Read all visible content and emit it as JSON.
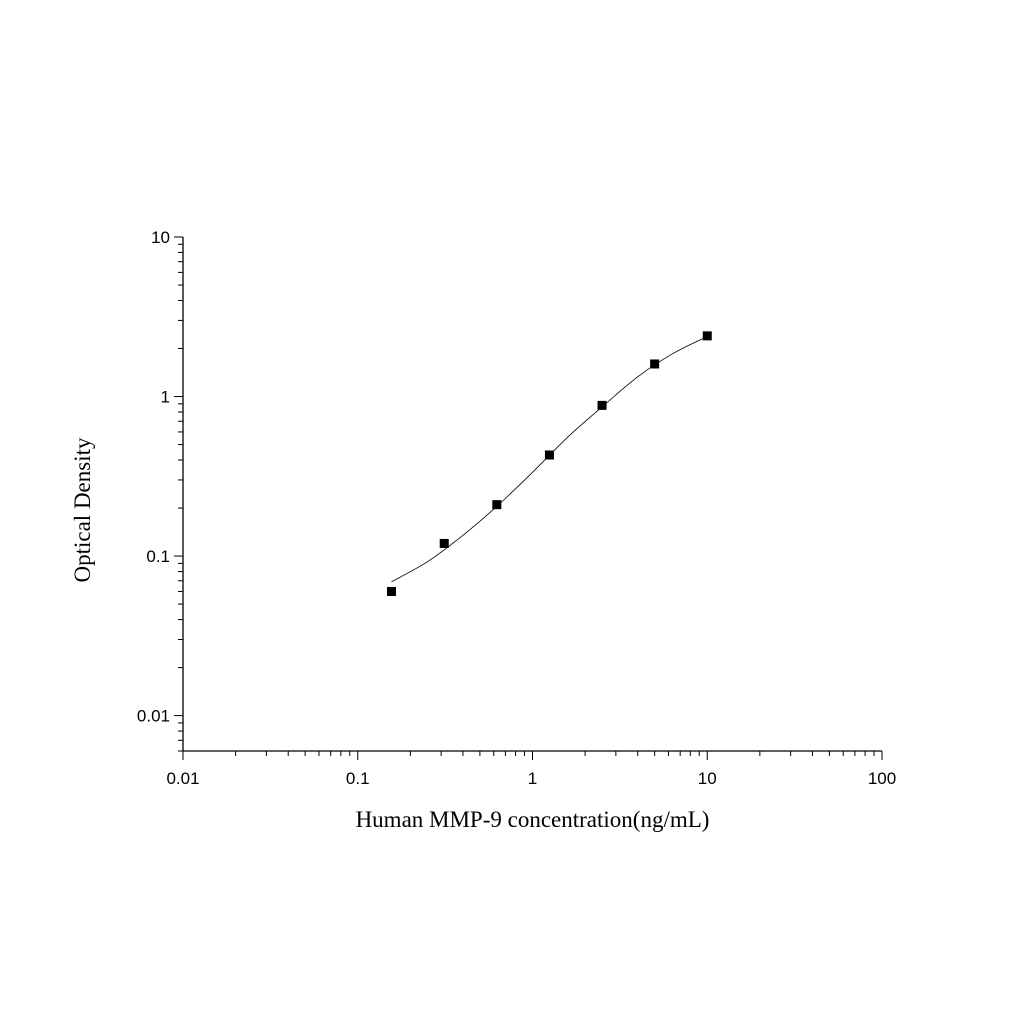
{
  "chart_data": {
    "type": "scatter",
    "title": "",
    "xlabel": "Human MMP-9 concentration(ng/mL)",
    "ylabel": "Optical Density",
    "xscale": "log",
    "yscale": "log",
    "xlim": [
      0.01,
      100
    ],
    "ylim": [
      0.006,
      10
    ],
    "x_ticks": [
      {
        "value": 0.01,
        "label": "0.01"
      },
      {
        "value": 0.1,
        "label": "0.1"
      },
      {
        "value": 1,
        "label": "1"
      },
      {
        "value": 10,
        "label": "10"
      },
      {
        "value": 100,
        "label": "100"
      }
    ],
    "y_ticks": [
      {
        "value": 0.01,
        "label": "0.01"
      },
      {
        "value": 0.1,
        "label": "0.1"
      },
      {
        "value": 1,
        "label": "1"
      },
      {
        "value": 10,
        "label": "10"
      }
    ],
    "grid": false,
    "legend": "none",
    "series": [
      {
        "marker": "square",
        "color": "#000000",
        "points": [
          {
            "x": 0.156,
            "y": 0.06
          },
          {
            "x": 0.3125,
            "y": 0.12
          },
          {
            "x": 0.625,
            "y": 0.21
          },
          {
            "x": 1.25,
            "y": 0.43
          },
          {
            "x": 2.5,
            "y": 0.88
          },
          {
            "x": 5,
            "y": 1.6
          },
          {
            "x": 10,
            "y": 2.4
          }
        ]
      }
    ],
    "fit_curve": {
      "type": "line",
      "color": "#000000",
      "points": [
        {
          "x": 0.156,
          "y": 0.069
        },
        {
          "x": 0.25,
          "y": 0.092
        },
        {
          "x": 0.4,
          "y": 0.135
        },
        {
          "x": 0.625,
          "y": 0.205
        },
        {
          "x": 1.0,
          "y": 0.335
        },
        {
          "x": 1.6,
          "y": 0.56
        },
        {
          "x": 2.5,
          "y": 0.86
        },
        {
          "x": 4.0,
          "y": 1.33
        },
        {
          "x": 6.3,
          "y": 1.85
        },
        {
          "x": 10,
          "y": 2.38
        }
      ]
    }
  }
}
